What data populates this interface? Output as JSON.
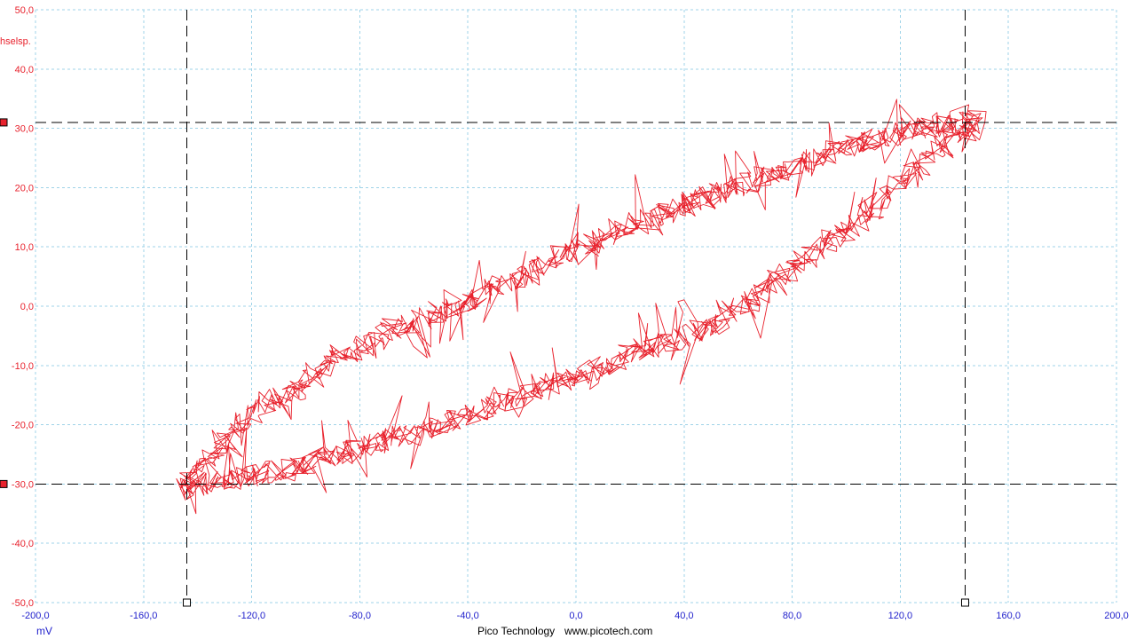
{
  "window": {
    "title": ""
  },
  "footer": {
    "brand": "Pico Technology",
    "url": "www.picotech.com"
  },
  "colors": {
    "trace": "#e8222d",
    "grid": "#9fd3e8",
    "y_axis_text": "#e8222d",
    "x_axis_text": "#2222cc",
    "cursor": "#000000",
    "cursor_handle_fill": "#e8222d"
  },
  "chart_data": {
    "type": "line",
    "title": "",
    "xlabel": "mV",
    "ylabel": "hselsp.",
    "xlim": [
      -200,
      200
    ],
    "ylim": [
      -50,
      50
    ],
    "grid": true,
    "x_ticks": [
      "-200,0",
      "-160,0",
      "-120,0",
      "-80,0",
      "-40,0",
      "0,0",
      "40,0",
      "80,0",
      "120,0",
      "160,0",
      "200,0"
    ],
    "y_ticks": [
      "50,0",
      "40,0",
      "30,0",
      "20,0",
      "10,0",
      "0,0",
      "-10,0",
      "-20,0",
      "-30,0",
      "-40,0",
      "-50,0"
    ],
    "cursors": {
      "x": [
        -144,
        144
      ],
      "y": [
        31,
        -30
      ]
    },
    "series": [
      {
        "values_upper": [
          [
            -146,
            -31
          ],
          [
            -140,
            -27
          ],
          [
            -134,
            -25
          ],
          [
            -128,
            -22
          ],
          [
            -122,
            -20
          ],
          [
            -116,
            -17
          ],
          [
            -110,
            -15
          ],
          [
            -104,
            -14
          ],
          [
            -98,
            -12
          ],
          [
            -92,
            -10
          ],
          [
            -86,
            -8
          ],
          [
            -80,
            -7
          ],
          [
            -74,
            -6
          ],
          [
            -68,
            -4
          ],
          [
            -62,
            -3
          ],
          [
            -56,
            -2
          ],
          [
            -50,
            -1
          ],
          [
            -44,
            0
          ],
          [
            -38,
            1
          ],
          [
            -32,
            3
          ],
          [
            -26,
            4
          ],
          [
            -20,
            5
          ],
          [
            -14,
            6
          ],
          [
            -8,
            8
          ],
          [
            -2,
            9
          ],
          [
            4,
            10
          ],
          [
            10,
            11
          ],
          [
            16,
            12
          ],
          [
            22,
            14
          ],
          [
            28,
            15
          ],
          [
            34,
            16
          ],
          [
            40,
            17
          ],
          [
            46,
            18
          ],
          [
            52,
            19
          ],
          [
            58,
            20
          ],
          [
            64,
            21
          ],
          [
            70,
            22
          ],
          [
            76,
            23
          ],
          [
            82,
            24
          ],
          [
            88,
            25
          ],
          [
            94,
            26
          ],
          [
            100,
            27
          ],
          [
            106,
            28
          ],
          [
            112,
            28
          ],
          [
            118,
            29
          ],
          [
            124,
            30
          ],
          [
            130,
            30
          ],
          [
            136,
            31
          ],
          [
            142,
            31
          ],
          [
            148,
            31
          ]
        ],
        "values_lower": [
          [
            148,
            30
          ],
          [
            142,
            29
          ],
          [
            136,
            27
          ],
          [
            130,
            25
          ],
          [
            124,
            22
          ],
          [
            118,
            20
          ],
          [
            112,
            17
          ],
          [
            106,
            15
          ],
          [
            100,
            13
          ],
          [
            94,
            11
          ],
          [
            88,
            9
          ],
          [
            82,
            7
          ],
          [
            76,
            5
          ],
          [
            70,
            3
          ],
          [
            64,
            1
          ],
          [
            58,
            -1
          ],
          [
            52,
            -3
          ],
          [
            46,
            -4
          ],
          [
            40,
            -5
          ],
          [
            34,
            -6
          ],
          [
            28,
            -7
          ],
          [
            22,
            -8
          ],
          [
            16,
            -9
          ],
          [
            10,
            -10
          ],
          [
            4,
            -11
          ],
          [
            -2,
            -12
          ],
          [
            -8,
            -13
          ],
          [
            -14,
            -14
          ],
          [
            -20,
            -15
          ],
          [
            -26,
            -16
          ],
          [
            -32,
            -17
          ],
          [
            -38,
            -18
          ],
          [
            -44,
            -19
          ],
          [
            -50,
            -20
          ],
          [
            -56,
            -21
          ],
          [
            -62,
            -22
          ],
          [
            -68,
            -22
          ],
          [
            -74,
            -23
          ],
          [
            -80,
            -24
          ],
          [
            -86,
            -25
          ],
          [
            -92,
            -25
          ],
          [
            -98,
            -26
          ],
          [
            -104,
            -27
          ],
          [
            -110,
            -28
          ],
          [
            -116,
            -28
          ],
          [
            -122,
            -29
          ],
          [
            -128,
            -29
          ],
          [
            -134,
            -30
          ],
          [
            -140,
            -30
          ],
          [
            -146,
            -31
          ]
        ]
      }
    ]
  }
}
